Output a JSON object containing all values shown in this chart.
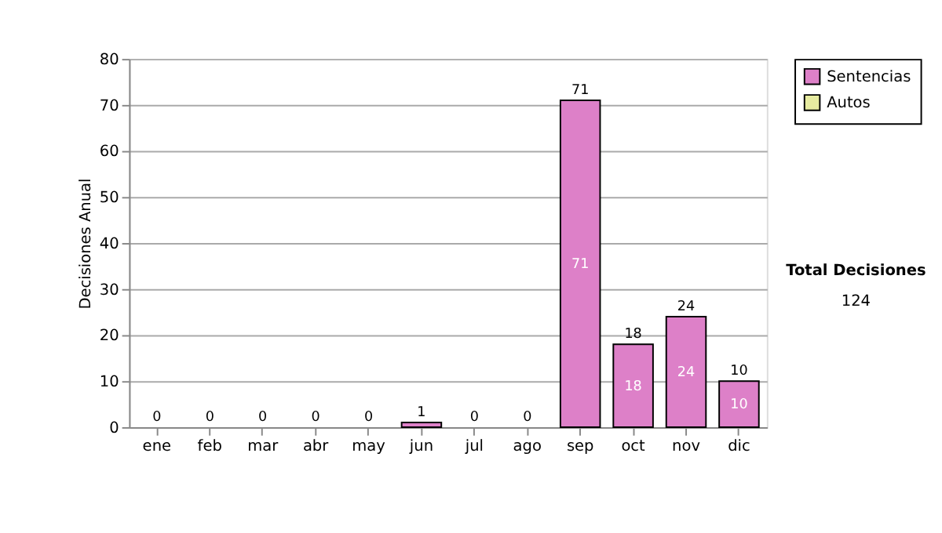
{
  "chart_data": {
    "type": "bar",
    "stacked": true,
    "ylabel": "Decisiones Anual",
    "categories": [
      "ene",
      "feb",
      "mar",
      "abr",
      "may",
      "jun",
      "jul",
      "ago",
      "sep",
      "oct",
      "nov",
      "dic"
    ],
    "series": [
      {
        "name": "Sentencias",
        "color": "#dd80c8",
        "values": [
          0,
          0,
          0,
          0,
          0,
          1,
          0,
          0,
          71,
          18,
          24,
          10
        ],
        "value_labels": [
          null,
          null,
          null,
          null,
          null,
          null,
          null,
          null,
          "71",
          "18",
          "24",
          "10"
        ]
      },
      {
        "name": "Autos",
        "color": "#e6eba0",
        "values": [
          0,
          0,
          0,
          0,
          0,
          0,
          0,
          0,
          0,
          0,
          0,
          0
        ]
      }
    ],
    "totals": [
      "0",
      "0",
      "0",
      "0",
      "0",
      "1",
      "0",
      "0",
      "71",
      "18",
      "24",
      "10"
    ],
    "ylim": [
      0,
      80
    ],
    "yticks": [
      0,
      10,
      20,
      30,
      40,
      50,
      60,
      70,
      80
    ],
    "grid": "y",
    "legend": "right",
    "annotations": [
      "Total Decisiones",
      "124"
    ]
  }
}
